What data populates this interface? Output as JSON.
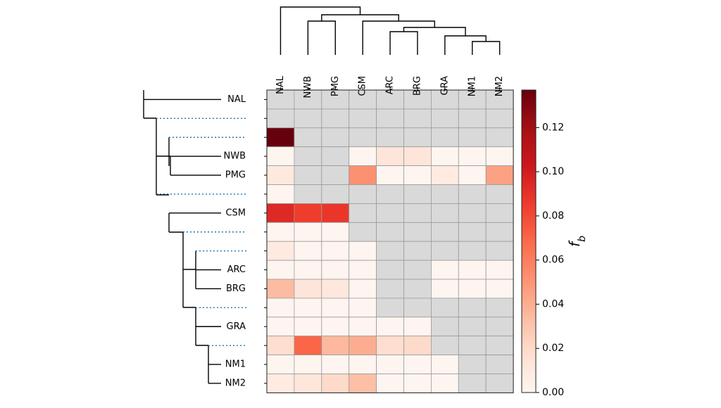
{
  "chart_data": {
    "type": "heatmap",
    "columns": [
      "NAL",
      "NWB",
      "PMG",
      "CSM",
      "ARC",
      "BRG",
      "GRA",
      "NM1",
      "NM2"
    ],
    "rows": [
      "NAL",
      "",
      "",
      "NWB",
      "PMG",
      "",
      "CSM",
      "",
      "",
      "ARC",
      "BRG",
      "",
      "GRA",
      "",
      "NM1",
      "NM2"
    ],
    "values": [
      [
        null,
        null,
        null,
        null,
        null,
        null,
        null,
        null,
        null
      ],
      [
        null,
        null,
        null,
        null,
        null,
        null,
        null,
        null,
        null
      ],
      [
        0.137,
        null,
        null,
        null,
        null,
        null,
        null,
        null,
        null
      ],
      [
        0.0,
        null,
        null,
        0.0,
        0.013,
        0.013,
        0.0,
        0.0,
        0.0
      ],
      [
        0.01,
        null,
        null,
        0.052,
        0.0,
        0.0,
        0.008,
        0.0,
        0.045
      ],
      [
        0.0,
        null,
        null,
        null,
        null,
        null,
        null,
        null,
        null
      ],
      [
        0.094,
        0.085,
        0.088,
        null,
        null,
        null,
        null,
        null,
        null
      ],
      [
        0.0,
        0.0,
        0.0,
        null,
        null,
        null,
        null,
        null,
        null
      ],
      [
        0.009,
        0.0,
        0.0,
        0.0,
        null,
        null,
        null,
        null,
        null
      ],
      [
        0.0,
        0.0,
        0.0,
        0.0,
        null,
        null,
        0.0,
        0.0,
        0.0
      ],
      [
        0.034,
        0.013,
        0.011,
        0.0,
        null,
        null,
        0.0,
        0.0,
        0.0
      ],
      [
        0.0,
        0.0,
        0.0,
        0.0,
        null,
        null,
        null,
        null,
        null
      ],
      [
        0.0,
        0.0,
        0.0,
        0.0,
        0.0,
        0.0,
        null,
        null,
        null
      ],
      [
        0.018,
        0.07,
        0.035,
        0.04,
        0.018,
        0.02,
        null,
        null,
        null
      ],
      [
        0.0,
        0.0,
        0.0,
        0.0,
        0.0,
        0.0,
        0.0,
        null,
        null
      ],
      [
        0.008,
        0.012,
        0.02,
        0.032,
        0.0,
        0.0,
        0.0,
        null,
        null
      ]
    ],
    "colorbar": {
      "label": "f_b",
      "ticks": [
        "0.00",
        "0.02",
        "0.04",
        "0.06",
        "0.08",
        "0.10",
        "0.12"
      ],
      "tick_values": [
        0.0,
        0.02,
        0.04,
        0.06,
        0.08,
        0.1,
        0.12
      ],
      "vmin": 0.0,
      "vmax": 0.137,
      "colormap": "Reds"
    },
    "missing_color": "#d9d9d9",
    "title": "",
    "xlabel": "",
    "ylabel": ""
  }
}
